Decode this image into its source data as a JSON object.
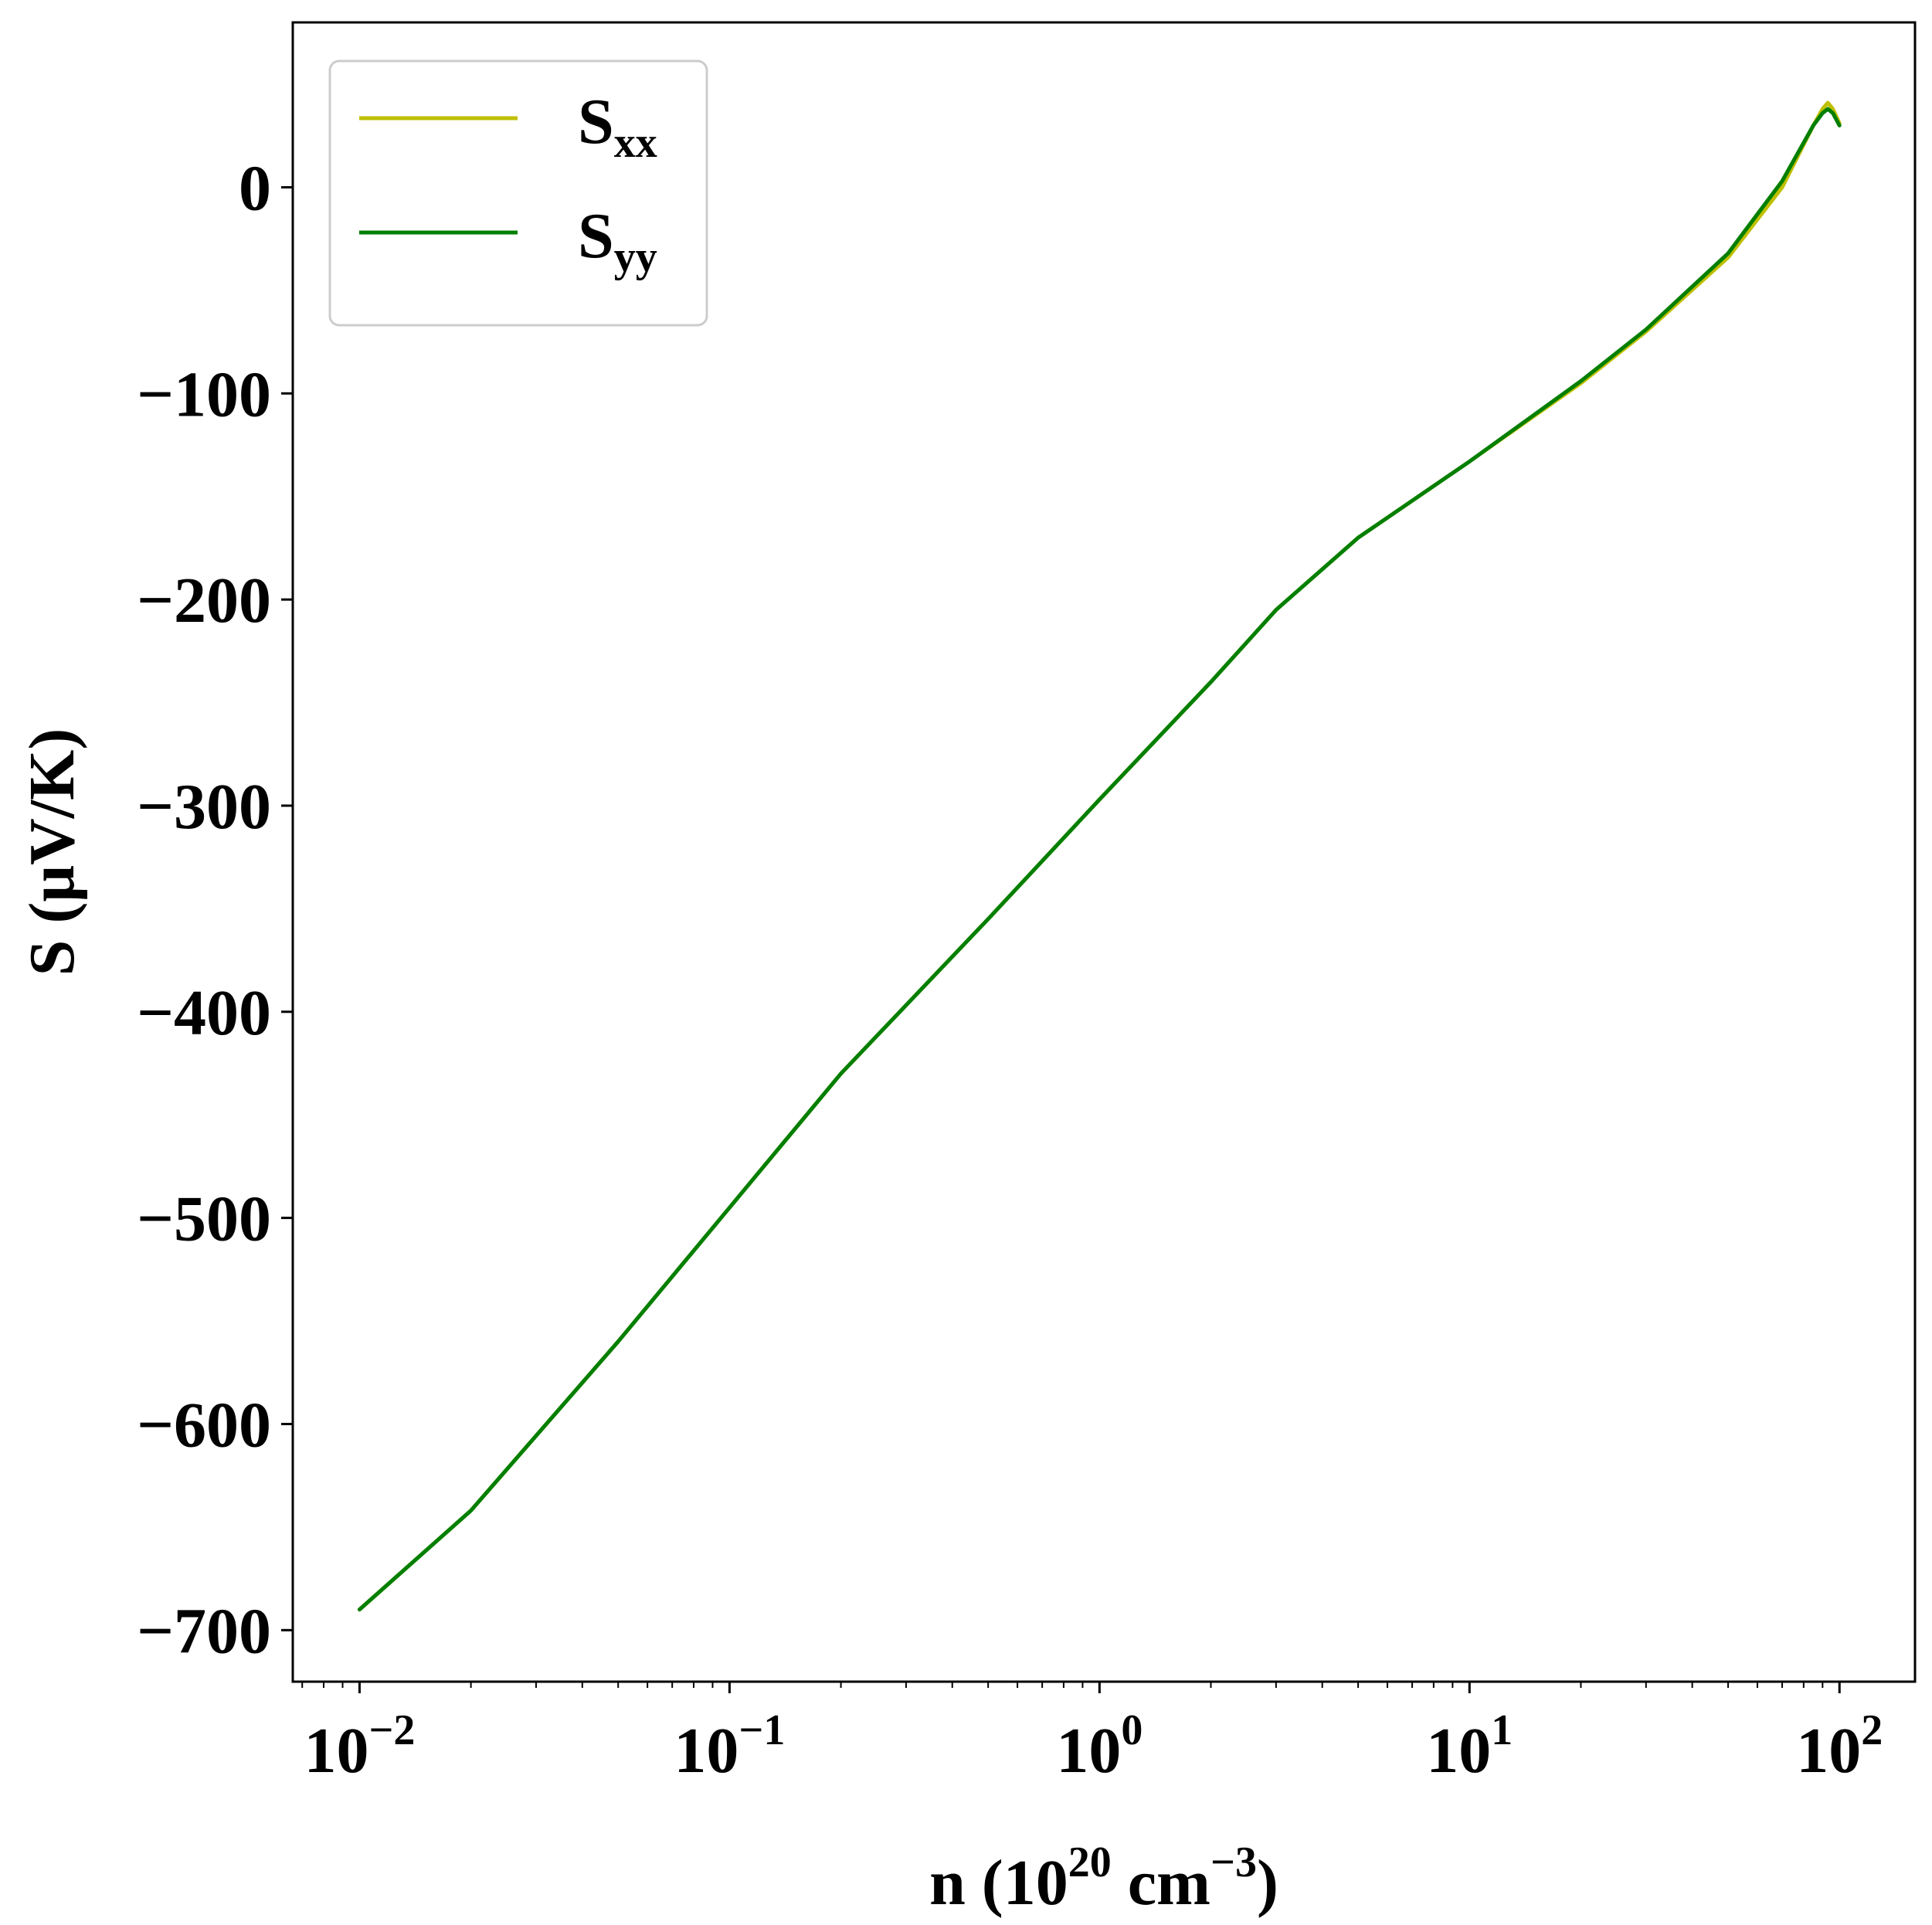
{
  "chart_data": {
    "type": "line",
    "xlabel": {
      "base": "n (10",
      "exp1": "20",
      "mid": " cm",
      "exp2": "−3",
      "end": ")"
    },
    "ylabel": "S (μV/K)",
    "xscale": "log",
    "xlim": [
      0.0066,
      160
    ],
    "ylim": [
      -725,
      80
    ],
    "x_ticks": [
      {
        "value": 0.01,
        "base": "10",
        "exp": "−2"
      },
      {
        "value": 0.1,
        "base": "10",
        "exp": "−1"
      },
      {
        "value": 1,
        "base": "10",
        "exp": "0"
      },
      {
        "value": 10,
        "base": "10",
        "exp": "1"
      },
      {
        "value": 100,
        "base": "10",
        "exp": "2"
      }
    ],
    "y_ticks": [
      {
        "value": 0,
        "label": "0"
      },
      {
        "value": -100,
        "label": "−100"
      },
      {
        "value": -200,
        "label": "−200"
      },
      {
        "value": -300,
        "label": "−300"
      },
      {
        "value": -400,
        "label": "−400"
      },
      {
        "value": -500,
        "label": "−500"
      },
      {
        "value": -600,
        "label": "−600"
      },
      {
        "value": -700,
        "label": "−700"
      }
    ],
    "grid": false,
    "legend": {
      "position": "top-left"
    },
    "series": [
      {
        "name": {
          "base": "S",
          "sub": "xx"
        },
        "color": "#bfbf00",
        "x": [
          0.01,
          0.02,
          0.05,
          0.1,
          0.2,
          0.5,
          1,
          2,
          3,
          5,
          10,
          20,
          30,
          50,
          70,
          85,
          90,
          93,
          96,
          100
        ],
        "y": [
          -690,
          -642,
          -560,
          -495,
          -430,
          -355,
          -297,
          -240,
          -205,
          -170,
          -133,
          -95,
          -70,
          -34,
          0,
          30,
          38,
          41,
          38,
          31
        ]
      },
      {
        "name": {
          "base": "S",
          "sub": "yy"
        },
        "color": "#007f00",
        "x": [
          0.01,
          0.02,
          0.05,
          0.1,
          0.2,
          0.5,
          1,
          2,
          3,
          5,
          10,
          20,
          30,
          50,
          70,
          85,
          90,
          93,
          96,
          100
        ],
        "y": [
          -690,
          -642,
          -560,
          -495,
          -430,
          -355,
          -297,
          -240,
          -205,
          -170,
          -133,
          -94,
          -69,
          -32,
          3,
          30,
          36,
          38,
          36,
          30
        ]
      }
    ]
  }
}
